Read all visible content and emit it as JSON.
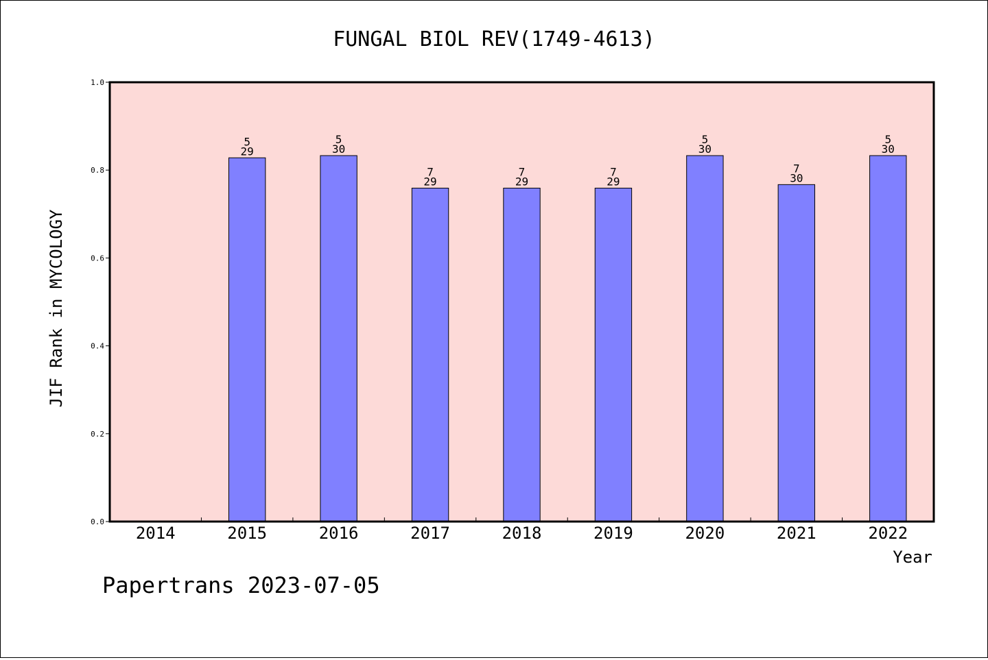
{
  "chart_data": {
    "type": "bar",
    "title": "FUNGAL BIOL REV(1749-4613)",
    "xlabel": "Year",
    "ylabel": "JIF Rank in MYCOLOGY",
    "categories": [
      "2014",
      "2015",
      "2016",
      "2017",
      "2018",
      "2019",
      "2020",
      "2021",
      "2022"
    ],
    "values": [
      null,
      0.828,
      0.833,
      0.759,
      0.759,
      0.759,
      0.833,
      0.767,
      0.833
    ],
    "bar_labels": [
      null,
      {
        "rank": "5",
        "total": "29"
      },
      {
        "rank": "5",
        "total": "30"
      },
      {
        "rank": "7",
        "total": "29"
      },
      {
        "rank": "7",
        "total": "29"
      },
      {
        "rank": "7",
        "total": "29"
      },
      {
        "rank": "5",
        "total": "30"
      },
      {
        "rank": "7",
        "total": "30"
      },
      {
        "rank": "5",
        "total": "30"
      }
    ],
    "ylim": [
      0,
      1.0
    ],
    "yticks": [
      "0.0",
      "0.2",
      "0.4",
      "0.6",
      "0.8",
      "1.0"
    ],
    "grid": false,
    "colors": {
      "plot_background": "#FDDAD8",
      "bar_fill": "#8080FF",
      "bar_stroke": "#000000"
    }
  },
  "footer": {
    "watermark": "Papertrans 2023-07-05"
  }
}
